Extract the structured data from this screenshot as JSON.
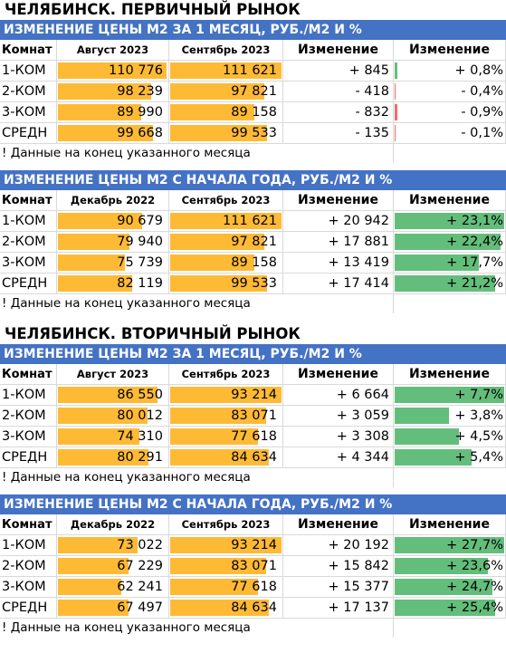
{
  "colors": {
    "banner": "#4472c4",
    "bar_price": "#ffba35",
    "bar_positive": "#63be7b",
    "bar_negative": "#f8696b"
  },
  "primary_title": "ЧЕЛЯБИНСК. ПЕРВИЧНЫЙ РЫНОК",
  "secondary_title": "ЧЕЛЯБИНСК. ВТОРИЧНЫЙ РЫНОК",
  "blocks": [
    {
      "banner": "ИЗМЕНЕНИЕ ЦЕНЫ М2 ЗА 1 МЕСЯЦ, РУБ./М2 И %",
      "headers": [
        "Комнат",
        "Август 2023",
        "Сентябрь 2023",
        "Изменение",
        "Изменение"
      ],
      "note": "! Данные на конец указанного месяца",
      "rows": [
        {
          "label": "1-КОМ",
          "v1": "110 776",
          "v1_num": 110776,
          "v2": "111 621",
          "v2_num": 111621,
          "delta": "+ 845",
          "pct": "+ 0,8%",
          "pct_num": 0.8
        },
        {
          "label": "2-КОМ",
          "v1": "98 239",
          "v1_num": 98239,
          "v2": "97 821",
          "v2_num": 97821,
          "delta": "- 418",
          "pct": "- 0,4%",
          "pct_num": -0.4
        },
        {
          "label": "3-КОМ",
          "v1": "89 990",
          "v1_num": 89990,
          "v2": "89 158",
          "v2_num": 89158,
          "delta": "- 832",
          "pct": "- 0,9%",
          "pct_num": -0.9
        },
        {
          "label": "СРЕДН",
          "v1": "99 668",
          "v1_num": 99668,
          "v2": "99 533",
          "v2_num": 99533,
          "delta": "- 135",
          "pct": "- 0,1%",
          "pct_num": -0.1
        }
      ]
    },
    {
      "banner": "ИЗМЕНЕНИЕ ЦЕНЫ М2 С НАЧАЛА ГОДА, РУБ./М2 И %",
      "headers": [
        "Комнат",
        "Декабрь 2022",
        "Сентябрь 2023",
        "Изменение",
        "Изменение"
      ],
      "note": "! Данные на конец указанного месяца",
      "rows": [
        {
          "label": "1-КОМ",
          "v1": "90 679",
          "v1_num": 90679,
          "v2": "111 621",
          "v2_num": 111621,
          "delta": "+ 20 942",
          "pct": "+ 23,1%",
          "pct_num": 23.1
        },
        {
          "label": "2-КОМ",
          "v1": "79 940",
          "v1_num": 79940,
          "v2": "97 821",
          "v2_num": 97821,
          "delta": "+ 17 881",
          "pct": "+ 22,4%",
          "pct_num": 22.4
        },
        {
          "label": "3-КОМ",
          "v1": "75 739",
          "v1_num": 75739,
          "v2": "89 158",
          "v2_num": 89158,
          "delta": "+ 13 419",
          "pct": "+ 17,7%",
          "pct_num": 17.7
        },
        {
          "label": "СРЕДН",
          "v1": "82 119",
          "v1_num": 82119,
          "v2": "99 533",
          "v2_num": 99533,
          "delta": "+ 17 414",
          "pct": "+ 21,2%",
          "pct_num": 21.2
        }
      ]
    },
    {
      "banner": "ИЗМЕНЕНИЕ ЦЕНЫ М2 ЗА 1 МЕСЯЦ, РУБ./М2 И %",
      "headers": [
        "Комнат",
        "Август 2023",
        "Сентябрь 2023",
        "Изменение",
        "Изменение"
      ],
      "note": "! Данные на конец указанного месяца",
      "rows": [
        {
          "label": "1-КОМ",
          "v1": "86 550",
          "v1_num": 86550,
          "v2": "93 214",
          "v2_num": 93214,
          "delta": "+ 6 664",
          "pct": "+ 7,7%",
          "pct_num": 7.7
        },
        {
          "label": "2-КОМ",
          "v1": "80 012",
          "v1_num": 80012,
          "v2": "83 071",
          "v2_num": 83071,
          "delta": "+ 3 059",
          "pct": "+ 3,8%",
          "pct_num": 3.8
        },
        {
          "label": "3-КОМ",
          "v1": "74 310",
          "v1_num": 74310,
          "v2": "77 618",
          "v2_num": 77618,
          "delta": "+ 3 308",
          "pct": "+ 4,5%",
          "pct_num": 4.5
        },
        {
          "label": "СРЕДН",
          "v1": "80 291",
          "v1_num": 80291,
          "v2": "84 634",
          "v2_num": 84634,
          "delta": "+ 4 344",
          "pct": "+ 5,4%",
          "pct_num": 5.4
        }
      ]
    },
    {
      "banner": "ИЗМЕНЕНИЕ ЦЕНЫ М2 С НАЧАЛА ГОДА, РУБ./М2 И %",
      "headers": [
        "Комнат",
        "Декабрь 2022",
        "Сентябрь 2023",
        "Изменение",
        "Изменение"
      ],
      "note": "! Данные на конец указанного месяца",
      "rows": [
        {
          "label": "1-КОМ",
          "v1": "73 022",
          "v1_num": 73022,
          "v2": "93 214",
          "v2_num": 93214,
          "delta": "+ 20 192",
          "pct": "+ 27,7%",
          "pct_num": 27.7
        },
        {
          "label": "2-КОМ",
          "v1": "67 229",
          "v1_num": 67229,
          "v2": "83 071",
          "v2_num": 83071,
          "delta": "+ 15 842",
          "pct": "+ 23,6%",
          "pct_num": 23.6
        },
        {
          "label": "3-КОМ",
          "v1": "62 241",
          "v1_num": 62241,
          "v2": "77 618",
          "v2_num": 77618,
          "delta": "+ 15 377",
          "pct": "+ 24,7%",
          "pct_num": 24.7
        },
        {
          "label": "СРЕДН",
          "v1": "67 497",
          "v1_num": 67497,
          "v2": "84 634",
          "v2_num": 84634,
          "delta": "+ 17 137",
          "pct": "+ 25,4%",
          "pct_num": 25.4
        }
      ]
    }
  ]
}
